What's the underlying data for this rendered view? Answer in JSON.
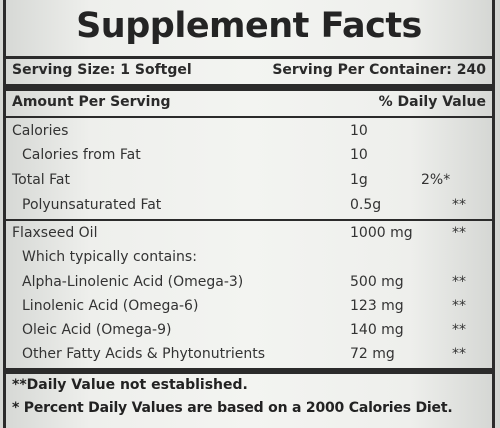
{
  "title": "Supplement Facts",
  "serving_size": "Serving Size: 1 Softgel",
  "servings_per_container": "Serving Per Container: 240",
  "header": {
    "amount_per_serving": "Amount Per Serving",
    "daily_value": "% Daily Value"
  },
  "rows": [
    {
      "name": "Calories",
      "amount": "10",
      "dv": ""
    },
    {
      "name": "Calories from Fat",
      "amount": "10",
      "dv": ""
    },
    {
      "name": "Total Fat",
      "amount": "1g",
      "dv": "2%*"
    },
    {
      "name": "Polyunsaturated Fat",
      "amount": "0.5g",
      "dv": "**"
    },
    {
      "name": "Flaxseed Oil",
      "amount": "1000 mg",
      "dv": "**"
    },
    {
      "name": "Which typically contains:",
      "amount": "",
      "dv": ""
    },
    {
      "name": "Alpha-Linolenic Acid (Omega-3)",
      "amount": "500 mg",
      "dv": "**"
    },
    {
      "name": "Linolenic Acid (Omega-6)",
      "amount": "123 mg",
      "dv": "**"
    },
    {
      "name": "Oleic Acid (Omega-9)",
      "amount": "140 mg",
      "dv": "**"
    },
    {
      "name": "Other Fatty Acids & Phytonutrients",
      "amount": "72 mg",
      "dv": "**"
    }
  ],
  "footnotes": [
    "**Daily Value not established.",
    "* Percent Daily Values are based on a 2000 Calories Diet."
  ]
}
